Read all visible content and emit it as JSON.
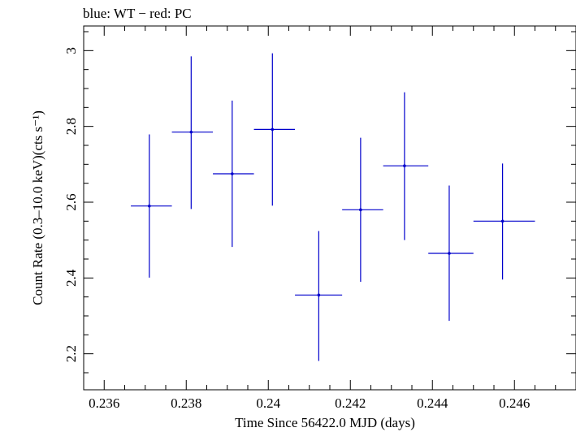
{
  "chart_data": {
    "type": "scatter",
    "title": "blue: WT − red: PC",
    "xlabel": "Time Since 56422.0 MJD (days)",
    "ylabel": "Count Rate (0.3–10.0 keV)(cts s⁻¹)",
    "xlim": [
      0.2355,
      0.2475
    ],
    "ylim": [
      2.105,
      3.065
    ],
    "x_ticks": [
      0.236,
      0.238,
      0.24,
      0.242,
      0.244,
      0.246
    ],
    "x_tick_labels": [
      "0.236",
      "0.238",
      "0.24",
      "0.242",
      "0.244",
      "0.246"
    ],
    "y_ticks": [
      2.2,
      2.4,
      2.6,
      2.8,
      3.0
    ],
    "y_tick_labels": [
      "2.2",
      "2.4",
      "2.6",
      "2.8",
      "3"
    ],
    "grid": false,
    "series": [
      {
        "color": "#0000cc",
        "points": [
          {
            "x": 0.2371,
            "x_lo": 0.23665,
            "x_hi": 0.23765,
            "y": 2.59,
            "y_lo": 2.401,
            "y_hi": 2.779
          },
          {
            "x": 0.23812,
            "x_lo": 0.23765,
            "x_hi": 0.23865,
            "y": 2.785,
            "y_lo": 2.582,
            "y_hi": 2.985
          },
          {
            "x": 0.23912,
            "x_lo": 0.23865,
            "x_hi": 0.23965,
            "y": 2.675,
            "y_lo": 2.482,
            "y_hi": 2.868
          },
          {
            "x": 0.2401,
            "x_lo": 0.23965,
            "x_hi": 0.24065,
            "y": 2.792,
            "y_lo": 2.591,
            "y_hi": 2.993
          },
          {
            "x": 0.24123,
            "x_lo": 0.24065,
            "x_hi": 0.2418,
            "y": 2.355,
            "y_lo": 2.181,
            "y_hi": 2.524
          },
          {
            "x": 0.24225,
            "x_lo": 0.2418,
            "x_hi": 0.2428,
            "y": 2.58,
            "y_lo": 2.39,
            "y_hi": 2.77
          },
          {
            "x": 0.24332,
            "x_lo": 0.2428,
            "x_hi": 0.2439,
            "y": 2.696,
            "y_lo": 2.5,
            "y_hi": 2.89
          },
          {
            "x": 0.24441,
            "x_lo": 0.2439,
            "x_hi": 0.245,
            "y": 2.465,
            "y_lo": 2.287,
            "y_hi": 2.644
          },
          {
            "x": 0.24571,
            "x_lo": 0.245,
            "x_hi": 0.2465,
            "y": 2.55,
            "y_lo": 2.396,
            "y_hi": 2.702
          }
        ]
      }
    ]
  }
}
